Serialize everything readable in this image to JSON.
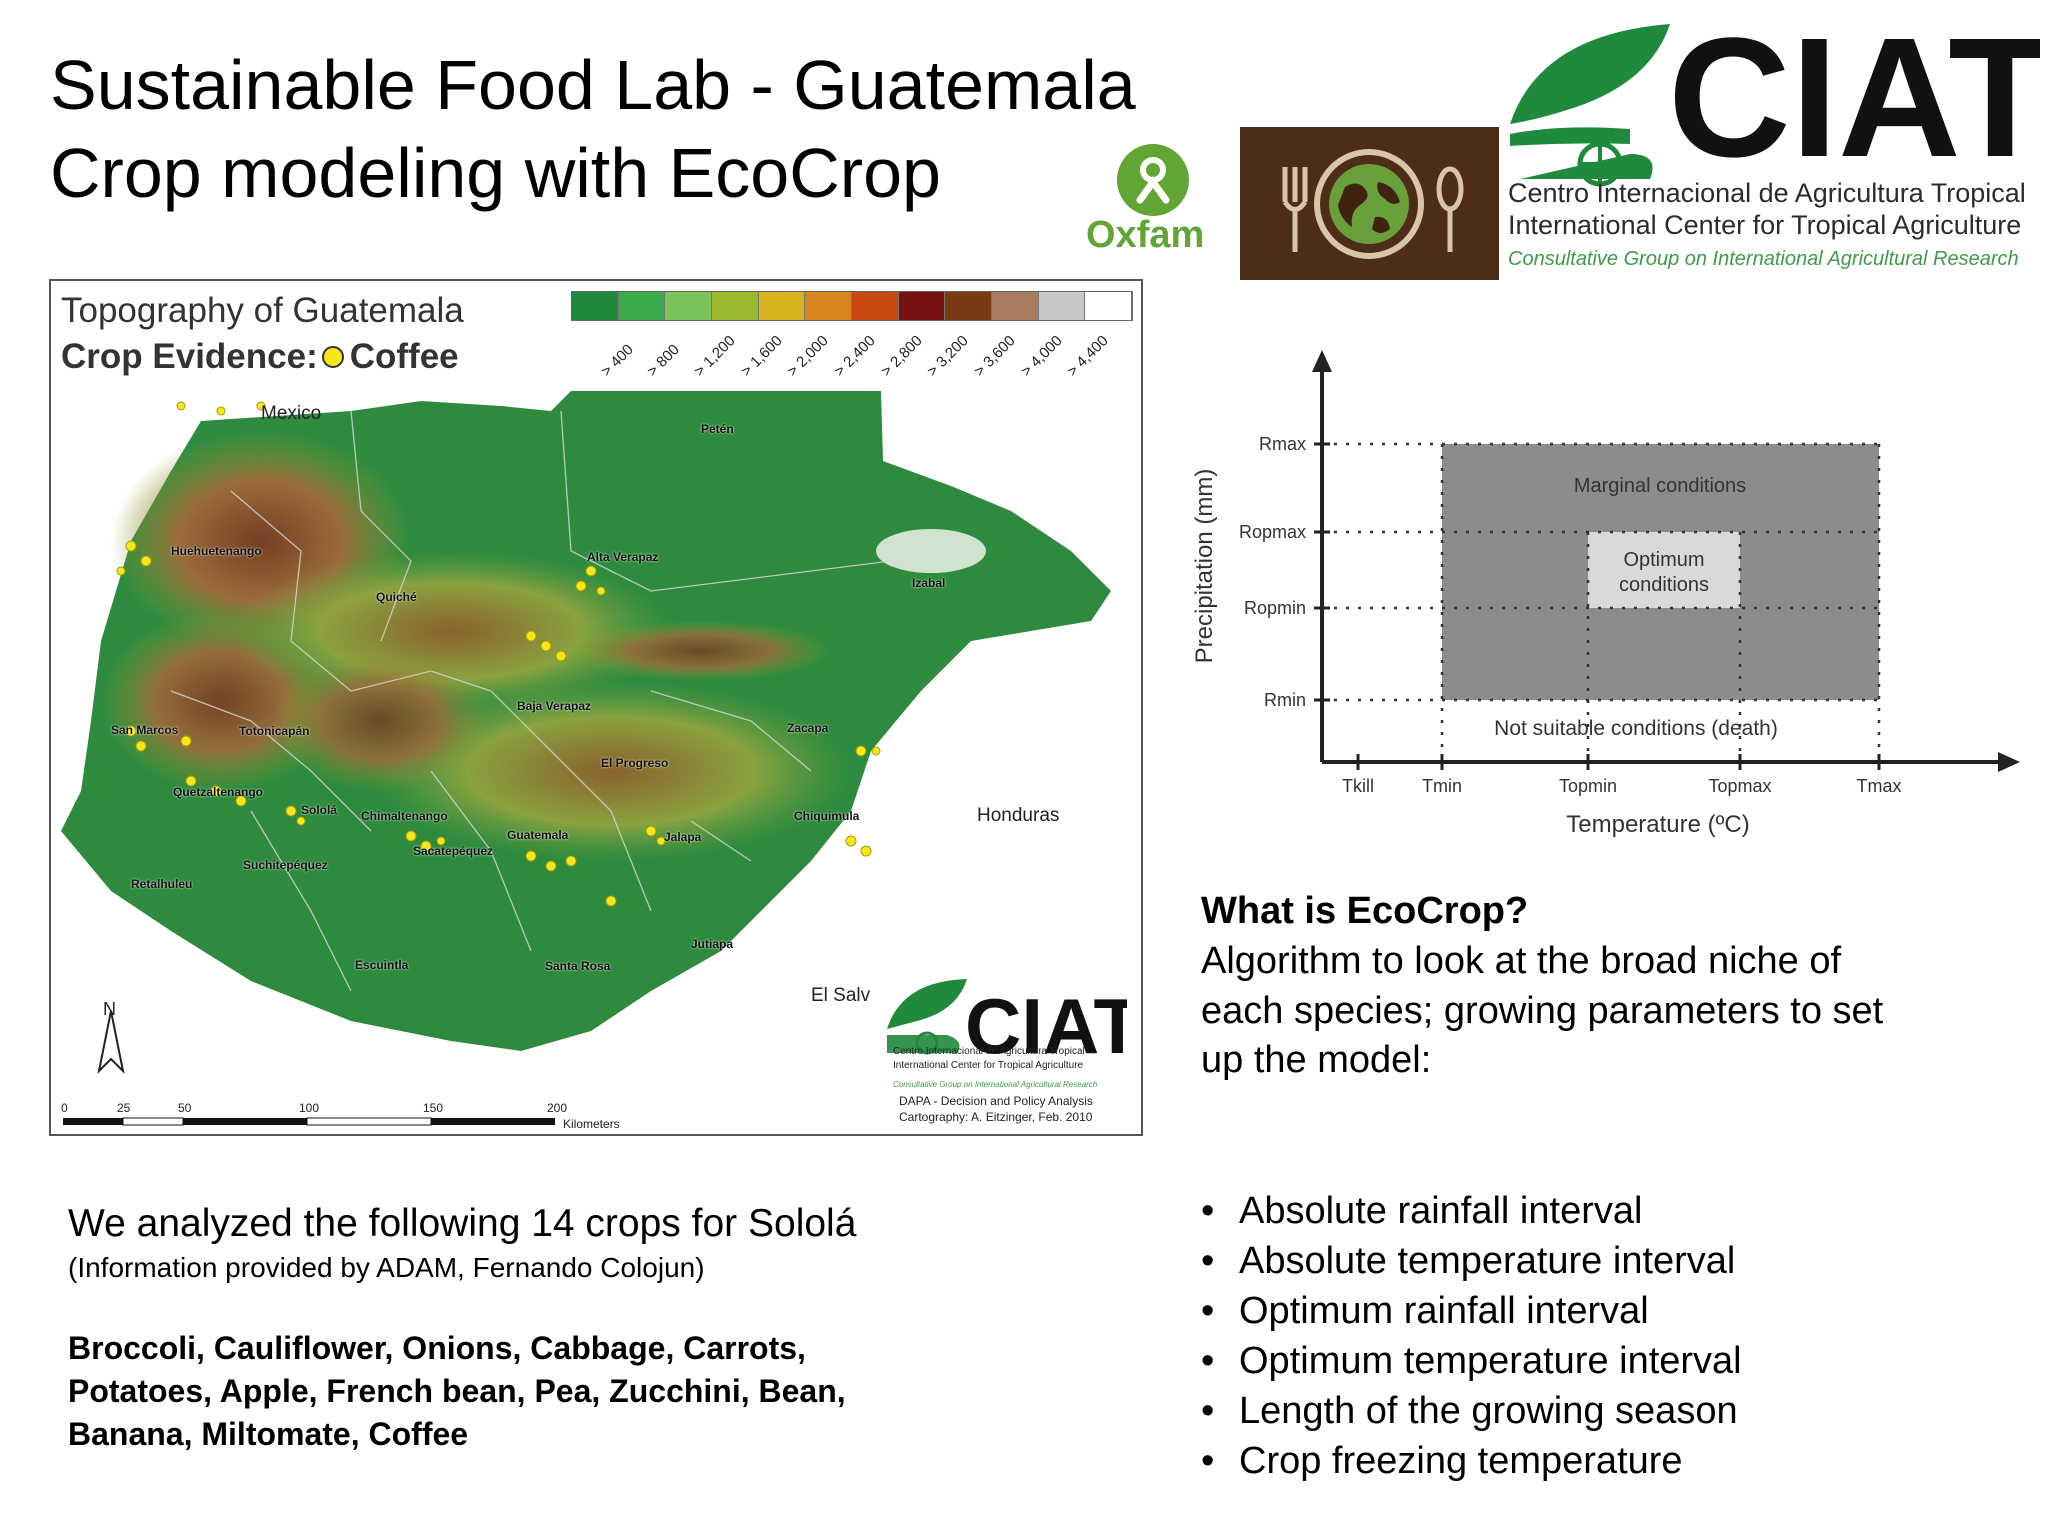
{
  "slide": {
    "title_line1": "Sustainable Food Lab - Guatemala",
    "title_line2": "Crop modeling with EcoCrop"
  },
  "logos": {
    "oxfam_wordmark": "Oxfam",
    "ciat_wordmark": "CIAT",
    "ciat_name_es": "Centro Internacional de Agricultura Tropical",
    "ciat_name_en": "International Center for Tropical Agriculture",
    "ciat_cg": "Consultative Group on International Agricultural Research"
  },
  "map": {
    "title": "Topography of Guatemala",
    "subtitle_label": "Crop Evidence:",
    "subtitle_crop": "Coffee",
    "legend_colors": [
      "#1f8a3b",
      "#3aaa4a",
      "#7cc35a",
      "#9ab82e",
      "#d7b521",
      "#d5861d",
      "#c84a10",
      "#7a1212",
      "#7a3a16",
      "#a87a5e",
      "#c8c8c8",
      "#ffffff"
    ],
    "legend_labels": [
      "> 400",
      "> 800",
      "> 1,200",
      "> 1,600",
      "> 2,000",
      "> 2,400",
      "> 2,800",
      "> 3,200",
      "> 3,600",
      "> 4,000",
      "> 4,400"
    ],
    "countries": {
      "mexico": "Mexico",
      "honduras": "Honduras",
      "el_salvador": "El Salv"
    },
    "places": {
      "peten": "Petén",
      "huehuetenango": "Huehuetenango",
      "quiche": "Quiché",
      "alta_verapaz": "Alta Verapaz",
      "izabal": "Izabal",
      "baja_verapaz": "Baja Verapaz",
      "san_marcos": "San Marcos",
      "totonicapan": "Totonicapán",
      "zacapa": "Zacapa",
      "el_progreso": "El Progreso",
      "quetzaltenango": "Quetzaltenango",
      "solola": "Sololá",
      "chimaltenango": "Chimaltenango",
      "guatemala": "Guatemala",
      "jalapa": "Jalapa",
      "chiquimula": "Chiquimula",
      "sacatepequez": "Sacatepéquez",
      "suchitepequez": "Suchitepéquez",
      "retalhuleu": "Retalhuleu",
      "jutiapa": "Jutiapa",
      "escuintla": "Escuintla",
      "santa_rosa": "Santa Rosa"
    },
    "scale_labels": [
      "0",
      "25",
      "50",
      "100",
      "150",
      "200"
    ],
    "scale_unit": "Kilometers",
    "north": "N",
    "credit_line1": "DAPA - Decision and Policy Analysis",
    "credit_line2": "Cartography: A. Eitzinger, Feb. 2010",
    "colors": {
      "low": "#2e8b3e",
      "mid": "#8a9a30",
      "high": "#7a3a22",
      "coffee": "#f6e71a"
    }
  },
  "diagram": {
    "y_axis_label": "Precipitation (mm)",
    "x_axis_label": "Temperature (ºC)",
    "y_ticks": [
      "Rmax",
      "Ropmax",
      "Ropmin",
      "Rmin"
    ],
    "x_ticks": [
      "Tkill",
      "Tmin",
      "Topmin",
      "Topmax",
      "Tmax"
    ],
    "marginal_label": "Marginal conditions",
    "optimum_label_line1": "Optimum",
    "optimum_label_line2": "conditions",
    "not_suitable_label": "Not suitable conditions (death)",
    "colors": {
      "marginal": "#8c8c8c",
      "optimum": "#d9d9d9"
    }
  },
  "ecocrop": {
    "heading": "What is EcoCrop?",
    "text_line1": "Algorithm to look at the broad niche of",
    "text_line2": "each species; growing parameters to set",
    "text_line3": "up the model:",
    "bullets": [
      "Absolute rainfall interval",
      "Absolute temperature interval",
      "Optimum rainfall interval",
      "Optimum temperature interval",
      "Length of the growing season",
      "Crop freezing temperature"
    ]
  },
  "crops": {
    "heading": "We analyzed the following 14 crops for Sololá",
    "source": "(Information provided by ADAM, Fernando Colojun)",
    "list_line1": "Broccoli, Cauliflower, Onions, Cabbage, Carrots,",
    "list_line2": "Potatoes, Apple, French bean, Pea, Zucchini, Bean,",
    "list_line3": "Banana, Miltomate, Coffee"
  }
}
